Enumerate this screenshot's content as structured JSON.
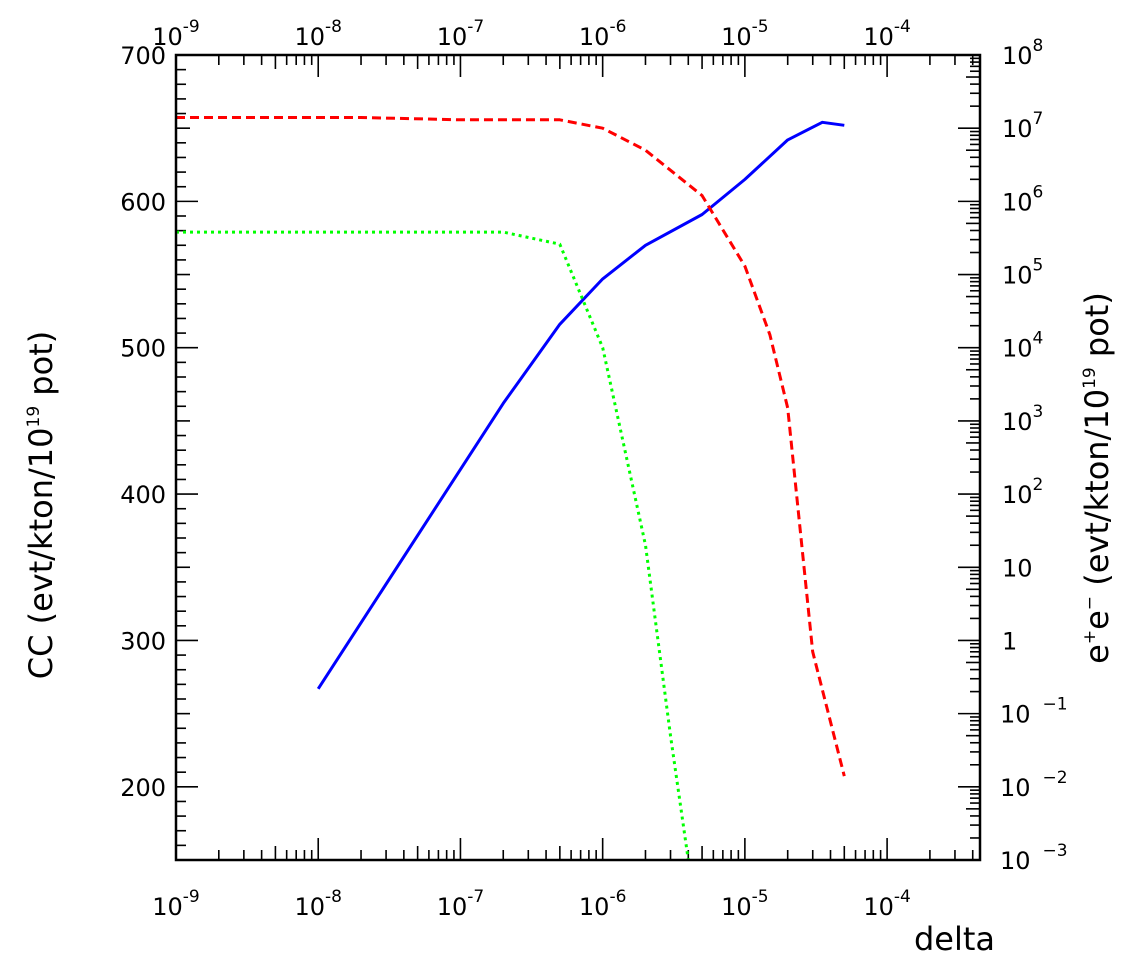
{
  "chart_data": {
    "type": "line",
    "title": "",
    "xlabel": "delta",
    "x_scale": "log",
    "xlim": [
      1e-09,
      0.00045
    ],
    "x_ticks": [
      {
        "value": 1e-09,
        "mant": "10",
        "exp": "-9"
      },
      {
        "value": 1e-08,
        "mant": "10",
        "exp": "-8"
      },
      {
        "value": 1e-07,
        "mant": "10",
        "exp": "-7"
      },
      {
        "value": 1e-06,
        "mant": "10",
        "exp": "-6"
      },
      {
        "value": 1e-05,
        "mant": "10",
        "exp": "-5"
      },
      {
        "value": 0.0001,
        "mant": "10",
        "exp": "-4"
      }
    ],
    "ylabel_left": "CC (evt/kton/10¹⁹ pot)",
    "ylabel_left_parts": {
      "main": "CC (evt/kton/10",
      "exp": "19",
      "tail": " pot)"
    },
    "ylim_left": [
      150,
      700
    ],
    "y_ticks_left": [
      "200",
      "300",
      "400",
      "500",
      "600",
      "700"
    ],
    "ylabel_right": "e⁺e⁻ (evt/kton/10¹⁹ pot)",
    "ylabel_right_parts": {
      "e1": "e",
      "s1": "+",
      "e2": "e",
      "s2": "−",
      "main": " (evt/kton/10",
      "exp": "19",
      "tail": " pot)"
    },
    "right_scale": "log",
    "ylim_right": [
      0.001,
      100000000.0
    ],
    "y_ticks_right": [
      {
        "value": 100000000.0,
        "mant": "10",
        "exp": "8"
      },
      {
        "value": 10000000.0,
        "mant": "10",
        "exp": "7"
      },
      {
        "value": 1000000.0,
        "mant": "10",
        "exp": "6"
      },
      {
        "value": 100000.0,
        "mant": "10",
        "exp": "5"
      },
      {
        "value": 10000.0,
        "mant": "10",
        "exp": "4"
      },
      {
        "value": 1000.0,
        "mant": "10",
        "exp": "3"
      },
      {
        "value": 100,
        "mant": "10",
        "exp": "2"
      },
      {
        "value": 10,
        "mant": "10",
        "exp": ""
      },
      {
        "value": 1,
        "mant": "1",
        "exp": ""
      },
      {
        "value": 0.1,
        "mant": "10",
        "exp": "−1"
      },
      {
        "value": 0.01,
        "mant": "10",
        "exp": "−2"
      },
      {
        "value": 0.001,
        "mant": "10",
        "exp": "−3"
      }
    ],
    "grid": false,
    "series": [
      {
        "axis": "left",
        "color": "#0000ff",
        "style": "solid",
        "x": [
          1e-08,
          2e-07,
          5e-07,
          1e-06,
          2e-06,
          5e-06,
          7.5e-06,
          1e-05,
          2e-05,
          3.5e-05,
          5e-05
        ],
        "y": [
          267,
          462,
          516,
          547,
          570,
          591,
          605,
          615,
          642,
          654,
          652
        ]
      },
      {
        "axis": "right",
        "color": "#ff0000",
        "style": "dashed",
        "x": [
          1e-09,
          2e-08,
          1e-07,
          2e-07,
          5e-07,
          1e-06,
          2e-06,
          5e-06,
          1e-05,
          1.5e-05,
          2e-05,
          3e-05,
          5e-05
        ],
        "y": [
          14000000.0,
          14000000.0,
          13000000.0,
          13000000.0,
          13000000.0,
          10000000.0,
          5000000.0,
          1200000.0,
          130000.0,
          15000.0,
          1500.0,
          0.7,
          0.014
        ]
      },
      {
        "axis": "right",
        "color": "#00ff00",
        "style": "dotted",
        "x": [
          1e-09,
          2e-08,
          1e-07,
          2e-07,
          5e-07,
          1e-06,
          2e-06,
          3e-06,
          4e-06
        ],
        "y": [
          380000.0,
          380000.0,
          380000.0,
          380000.0,
          260000.0,
          10000.0,
          20,
          0.05,
          0.001
        ]
      }
    ]
  }
}
